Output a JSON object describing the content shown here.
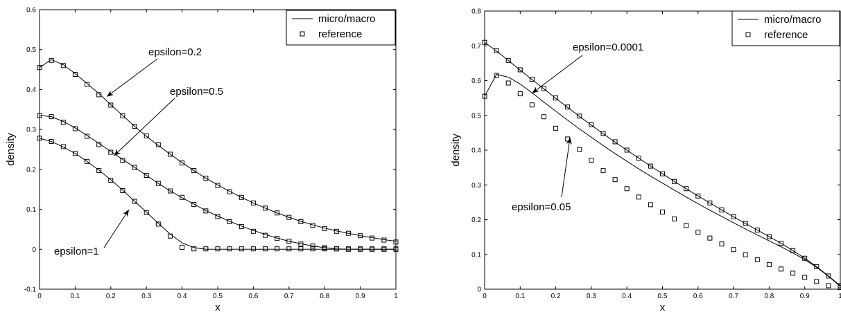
{
  "chart_data": [
    {
      "type": "line",
      "title": "",
      "xlabel": "x",
      "ylabel": "density",
      "xlim": [
        0,
        1
      ],
      "ylim": [
        -0.1,
        0.6
      ],
      "xticks": [
        0,
        0.1,
        0.2,
        0.3,
        0.4,
        0.5,
        0.6,
        0.7,
        0.8,
        0.9,
        1
      ],
      "yticks": [
        -0.1,
        0,
        0.1,
        0.2,
        0.3,
        0.4,
        0.5,
        0.6
      ],
      "grid": false,
      "legend": {
        "position": "top-right",
        "entries": [
          "micro/macro",
          "reference"
        ]
      },
      "x": [
        0,
        0.0333,
        0.0667,
        0.1,
        0.1333,
        0.1667,
        0.2,
        0.2333,
        0.2667,
        0.3,
        0.3333,
        0.3667,
        0.4,
        0.4333,
        0.4667,
        0.5,
        0.5333,
        0.5667,
        0.6,
        0.6333,
        0.6667,
        0.7,
        0.7333,
        0.7667,
        0.8,
        0.8333,
        0.8667,
        0.9,
        0.9333,
        0.9667,
        1
      ],
      "series": [
        {
          "name": "micro/macro",
          "group": "epsilon=0.2",
          "style": "line",
          "values": [
            0.455,
            0.475,
            0.462,
            0.44,
            0.415,
            0.39,
            0.362,
            0.335,
            0.308,
            0.283,
            0.26,
            0.238,
            0.217,
            0.197,
            0.178,
            0.161,
            0.145,
            0.13,
            0.116,
            0.103,
            0.091,
            0.08,
            0.07,
            0.061,
            0.053,
            0.046,
            0.04,
            0.034,
            0.029,
            0.024,
            0.02
          ]
        },
        {
          "name": "reference",
          "group": "epsilon=0.2",
          "style": "marker",
          "values": [
            0.455,
            0.473,
            0.46,
            0.438,
            0.413,
            0.387,
            0.361,
            0.334,
            0.308,
            0.284,
            0.262,
            0.238,
            0.216,
            0.197,
            0.178,
            0.16,
            0.144,
            0.13,
            0.116,
            0.103,
            0.091,
            0.08,
            0.069,
            0.06,
            0.052,
            0.045,
            0.04,
            0.034,
            0.028,
            0.023,
            0.018
          ]
        },
        {
          "name": "micro/macro",
          "group": "epsilon=0.5",
          "style": "line",
          "values": [
            0.335,
            0.332,
            0.32,
            0.304,
            0.285,
            0.265,
            0.245,
            0.225,
            0.205,
            0.185,
            0.165,
            0.146,
            0.129,
            0.113,
            0.097,
            0.083,
            0.07,
            0.058,
            0.047,
            0.037,
            0.028,
            0.02,
            0.014,
            0.008,
            0.004,
            0.001,
            0,
            0,
            0,
            0,
            0
          ]
        },
        {
          "name": "reference",
          "group": "epsilon=0.5",
          "style": "marker",
          "values": [
            0.335,
            0.332,
            0.318,
            0.302,
            0.283,
            0.262,
            0.243,
            0.223,
            0.205,
            0.185,
            0.165,
            0.146,
            0.13,
            0.112,
            0.096,
            0.082,
            0.069,
            0.057,
            0.045,
            0.035,
            0.027,
            0.02,
            0.013,
            0.008,
            0.004,
            0.001,
            0,
            0,
            0,
            0,
            0
          ]
        },
        {
          "name": "micro/macro",
          "group": "epsilon=1",
          "style": "line",
          "values": [
            0.278,
            0.27,
            0.256,
            0.24,
            0.22,
            0.198,
            0.174,
            0.148,
            0.12,
            0.093,
            0.065,
            0.038,
            0.016,
            0.004,
            0,
            0,
            0,
            0,
            0,
            0,
            0,
            0,
            0,
            0,
            0,
            0,
            0,
            0,
            0,
            0,
            0
          ]
        },
        {
          "name": "reference",
          "group": "epsilon=1",
          "style": "marker",
          "values": [
            0.278,
            0.27,
            0.257,
            0.24,
            0.22,
            0.197,
            0.173,
            0.147,
            0.12,
            0.092,
            0.063,
            0.033,
            0.005,
            0.001,
            0.001,
            0.001,
            0.001,
            0.001,
            0.001,
            0.001,
            0.001,
            0.001,
            0.001,
            0.001,
            0.001,
            0.001,
            0.001,
            0.001,
            0.001,
            0.001,
            0.001
          ]
        }
      ],
      "annotations": [
        {
          "text": "epsilon=0.2",
          "x": 0.19,
          "y": 0.383
        },
        {
          "text": "epsilon=0.5",
          "x": 0.21,
          "y": 0.235
        },
        {
          "text": "epsilon=1",
          "x": 0.25,
          "y": 0.098
        }
      ]
    },
    {
      "type": "line",
      "title": "",
      "xlabel": "x",
      "ylabel": "density",
      "xlim": [
        0,
        1
      ],
      "ylim": [
        0,
        0.8
      ],
      "xticks": [
        0,
        0.1,
        0.2,
        0.3,
        0.4,
        0.5,
        0.6,
        0.7,
        0.8,
        0.9,
        1
      ],
      "yticks": [
        0,
        0.1,
        0.2,
        0.3,
        0.4,
        0.5,
        0.6,
        0.7,
        0.8
      ],
      "grid": false,
      "legend": {
        "position": "top-right",
        "entries": [
          "micro/macro",
          "reference"
        ]
      },
      "x": [
        0,
        0.0333,
        0.0667,
        0.1,
        0.1333,
        0.1667,
        0.2,
        0.2333,
        0.2667,
        0.3,
        0.3333,
        0.3667,
        0.4,
        0.4333,
        0.4667,
        0.5,
        0.5333,
        0.5667,
        0.6,
        0.6333,
        0.6667,
        0.7,
        0.7333,
        0.7667,
        0.8,
        0.8333,
        0.8667,
        0.9,
        0.9333,
        0.9667,
        1
      ],
      "series": [
        {
          "name": "micro/macro",
          "group": "epsilon=0.0001",
          "style": "line",
          "values": [
            0.71,
            0.685,
            0.658,
            0.63,
            0.603,
            0.576,
            0.549,
            0.523,
            0.497,
            0.472,
            0.447,
            0.423,
            0.4,
            0.377,
            0.354,
            0.332,
            0.31,
            0.289,
            0.268,
            0.248,
            0.228,
            0.208,
            0.189,
            0.17,
            0.151,
            0.132,
            0.111,
            0.089,
            0.065,
            0.038,
            0.01
          ]
        },
        {
          "name": "reference",
          "group": "epsilon=0.0001",
          "style": "marker",
          "values": [
            0.71,
            0.686,
            0.658,
            0.631,
            0.604,
            0.577,
            0.55,
            0.524,
            0.498,
            0.473,
            0.448,
            0.424,
            0.4,
            0.377,
            0.354,
            0.332,
            0.31,
            0.289,
            0.268,
            0.248,
            0.228,
            0.208,
            0.189,
            0.17,
            0.151,
            0.132,
            0.111,
            0.089,
            0.065,
            0.038,
            0.01
          ]
        },
        {
          "name": "micro/macro",
          "group": "epsilon=0.05",
          "style": "line",
          "values": [
            0.555,
            0.618,
            0.61,
            0.59,
            0.565,
            0.538,
            0.512,
            0.486,
            0.461,
            0.437,
            0.413,
            0.39,
            0.368,
            0.346,
            0.325,
            0.305,
            0.285,
            0.265,
            0.246,
            0.227,
            0.209,
            0.191,
            0.173,
            0.156,
            0.139,
            0.122,
            0.104,
            0.085,
            0.063,
            0.037,
            0.008
          ]
        },
        {
          "name": "reference",
          "group": "epsilon=0.05",
          "style": "marker",
          "values": [
            0.555,
            0.615,
            0.593,
            0.562,
            0.53,
            0.496,
            0.463,
            0.432,
            0.402,
            0.371,
            0.341,
            0.315,
            0.289,
            0.265,
            0.243,
            0.222,
            0.202,
            0.183,
            0.164,
            0.147,
            0.13,
            0.114,
            0.099,
            0.085,
            0.071,
            0.058,
            0.046,
            0.034,
            0.022,
            0.01,
            0.005
          ]
        }
      ],
      "annotations": [
        {
          "text": "epsilon=0.0001",
          "x": 0.135,
          "y": 0.565
        },
        {
          "text": "epsilon=0.05",
          "x": 0.24,
          "y": 0.435
        }
      ]
    }
  ]
}
